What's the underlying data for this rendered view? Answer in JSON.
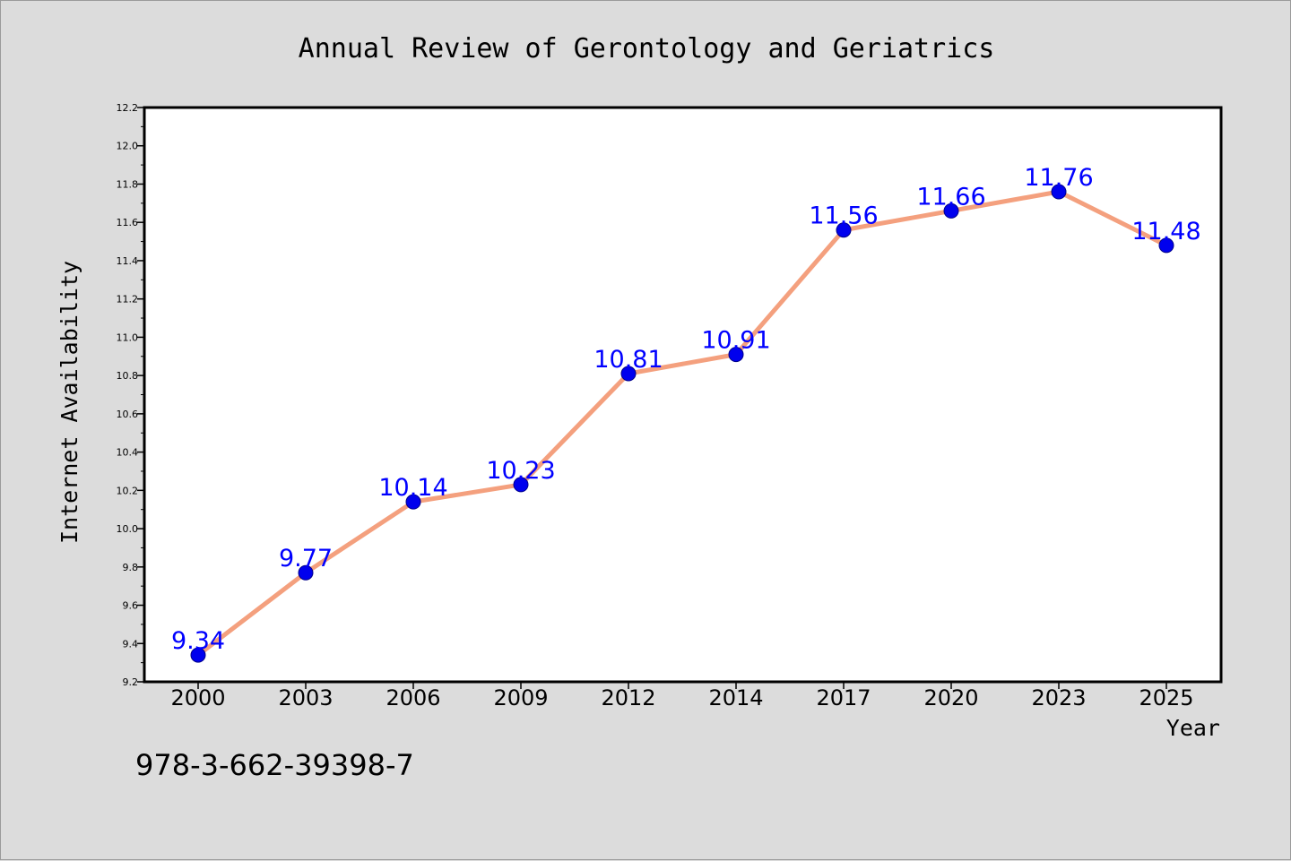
{
  "chart_data": {
    "type": "line",
    "title": "Annual Review of Gerontology and Geriatrics",
    "xlabel": "Year",
    "ylabel": "Internet Availability",
    "categories": [
      "2000",
      "2003",
      "2006",
      "2009",
      "2012",
      "2014",
      "2017",
      "2020",
      "2023",
      "2025"
    ],
    "values": [
      9.34,
      9.77,
      10.14,
      10.23,
      10.81,
      10.91,
      11.56,
      11.66,
      11.76,
      11.48
    ],
    "data_labels": [
      "9.34",
      "9.77",
      "10.14",
      "10.23",
      "10.81",
      "10.91",
      "11.56",
      "11.66",
      "11.76",
      "11.48"
    ],
    "ylim": [
      9.2,
      12.2
    ],
    "yticks": [
      "9.2",
      "9.4",
      "9.6",
      "9.8",
      "10.0",
      "10.2",
      "10.4",
      "10.6",
      "10.8",
      "11.0",
      "11.2",
      "11.4",
      "11.6",
      "11.8",
      "12.0",
      "12.2"
    ],
    "grid": false,
    "colors": {
      "line": "#f4a07e",
      "marker": "#0000ee",
      "data_label": "#0000ff",
      "plot_bg": "#ffffff",
      "figure_bg": "#dcdcdc"
    }
  },
  "footer_text": "978-3-662-39398-7"
}
